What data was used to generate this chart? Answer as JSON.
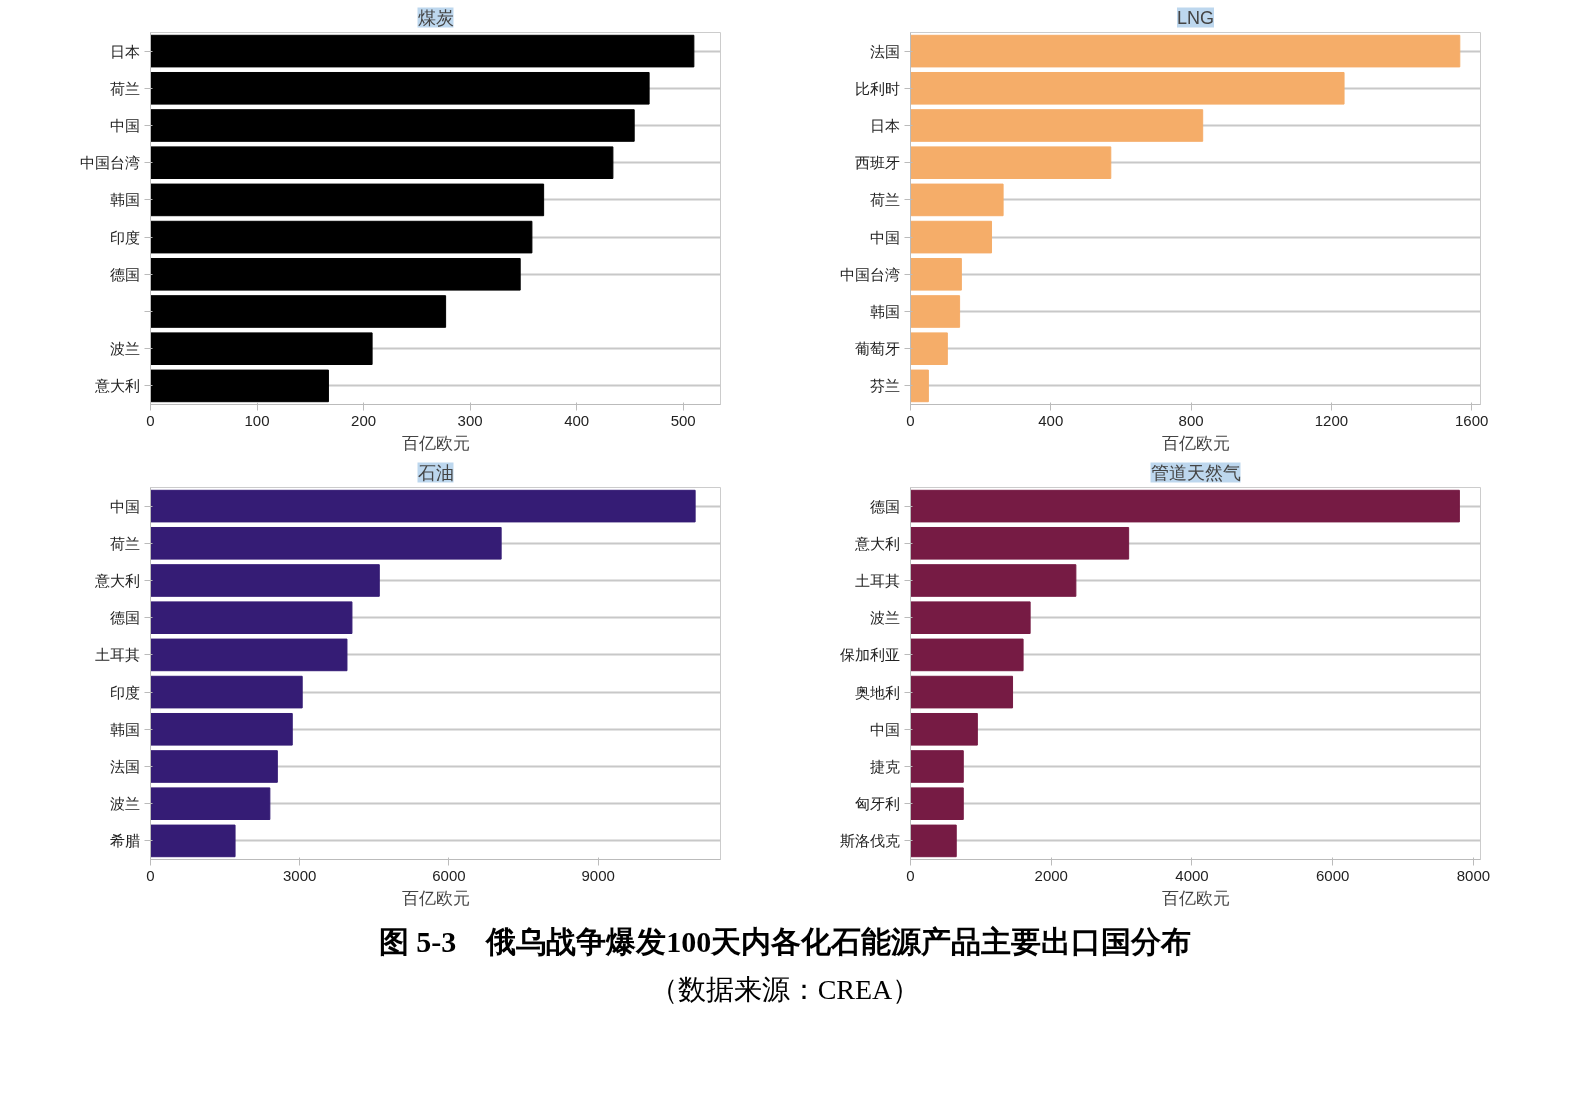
{
  "chart_data": [
    {
      "type": "bar",
      "orientation": "horizontal",
      "title": "煤炭",
      "xlabel": "百亿欧元",
      "categories": [
        "日本",
        "荷兰",
        "中国",
        "中国台湾",
        "韩国",
        "印度",
        "德国",
        null,
        "波兰",
        "意大利"
      ],
      "values": [
        510,
        468,
        454,
        434,
        369,
        358,
        347,
        277,
        208,
        167
      ],
      "color": "#000000",
      "xlim": [
        0,
        535
      ],
      "xticks": [
        0,
        100,
        200,
        300,
        400,
        500
      ],
      "grid": "y"
    },
    {
      "type": "bar",
      "orientation": "horizontal",
      "title": "LNG",
      "xlabel": "百亿欧元",
      "categories": [
        "法国",
        "比利时",
        "日本",
        "西班牙",
        "荷兰",
        "中国",
        "中国台湾",
        "韩国",
        "葡萄牙",
        "芬兰"
      ],
      "values": [
        1566,
        1236,
        833,
        571,
        264,
        231,
        145,
        140,
        105,
        51
      ],
      "color": "#f5ad69",
      "xlim": [
        0,
        1625
      ],
      "xticks": [
        0,
        400,
        800,
        1200,
        1600
      ],
      "grid": "y"
    },
    {
      "type": "bar",
      "orientation": "horizontal",
      "title": "石油",
      "xlabel": "百亿欧元",
      "categories": [
        "中国",
        "荷兰",
        "意大利",
        "德国",
        "土耳其",
        "印度",
        "韩国",
        "法国",
        "波兰",
        "希腊"
      ],
      "values": [
        10950,
        7050,
        4600,
        4050,
        3950,
        3050,
        2850,
        2550,
        2400,
        1700
      ],
      "color": "#351c75",
      "xlim": [
        0,
        11460
      ],
      "xticks": [
        0,
        3000,
        6000,
        9000
      ],
      "grid": "y"
    },
    {
      "type": "bar",
      "orientation": "horizontal",
      "title": "管道天然气",
      "xlabel": "百亿欧元",
      "categories": [
        "德国",
        "意大利",
        "土耳其",
        "波兰",
        "保加利亚",
        "奥地利",
        "中国",
        "捷克",
        "匈牙利",
        "斯洛伐克"
      ],
      "values": [
        7800,
        3100,
        2350,
        1700,
        1600,
        1450,
        950,
        750,
        750,
        650
      ],
      "color": "#761b44",
      "xlim": [
        0,
        8100
      ],
      "xticks": [
        0,
        2000,
        4000,
        6000,
        8000
      ],
      "grid": "y"
    },
    {
      "type": "other",
      "annotations": [
        "图 5-3　俄乌战争爆发100天内各化石能源产品主要出口国分布",
        "（数据来源：CREA）"
      ]
    }
  ]
}
